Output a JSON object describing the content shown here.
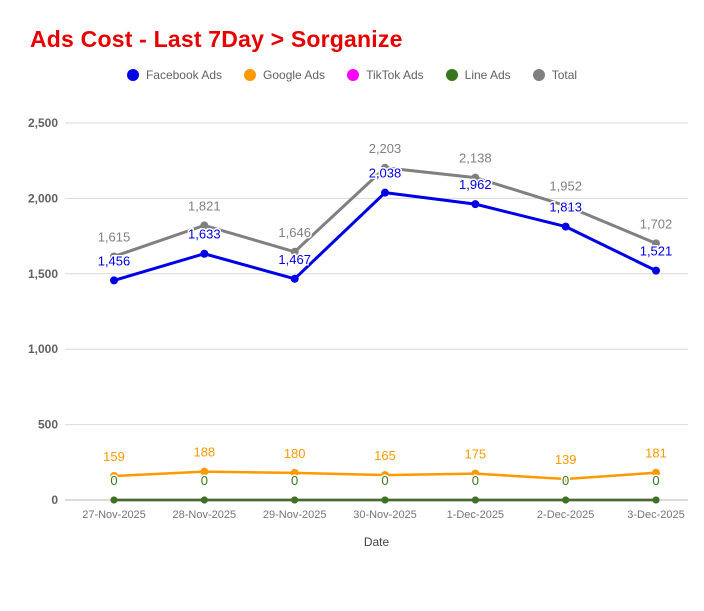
{
  "title": "Ads Cost - Last 7Day > Sorganize",
  "colors": {
    "title": "#e60000",
    "gridline": "#d9d9d9",
    "baseline": "#b7b7b7",
    "axis_text": "#616161",
    "x_text": "#757575",
    "axis_title_text": "#424242",
    "label_halo": "#ffffff"
  },
  "chart_data": {
    "type": "line",
    "title": "Ads Cost - Last 7Day > Sorganize",
    "categories": [
      "27-Nov-2025",
      "28-Nov-2025",
      "29-Nov-2025",
      "30-Nov-2025",
      "1-Dec-2025",
      "2-Dec-2025",
      "3-Dec-2025"
    ],
    "series": [
      {
        "name": "Facebook Ads",
        "color": "#0000e6",
        "values": [
          1456,
          1633,
          1467,
          2038,
          1962,
          1813,
          1521
        ],
        "labels_visible": true
      },
      {
        "name": "Google Ads",
        "color": "#ff9900",
        "values": [
          159,
          188,
          180,
          165,
          175,
          139,
          181
        ],
        "labels_visible": true
      },
      {
        "name": "TikTok Ads",
        "color": "#ff00ff",
        "values": [
          0,
          0,
          0,
          0,
          0,
          0,
          0
        ],
        "labels_visible": false
      },
      {
        "name": "Line Ads",
        "color": "#38761d",
        "values": [
          0,
          0,
          0,
          0,
          0,
          0,
          0
        ],
        "labels_visible": true
      },
      {
        "name": "Total",
        "color": "#808080",
        "values": [
          1615,
          1821,
          1646,
          2203,
          2138,
          1952,
          1702
        ],
        "labels_visible": true
      }
    ],
    "xlabel": "Date",
    "ylabel": "",
    "ylim": [
      0,
      2500
    ],
    "yticks": [
      0,
      500,
      1000,
      1500,
      2000,
      2500
    ],
    "ytick_labels": [
      "0",
      "500",
      "1,000",
      "1,500",
      "2,000",
      "2,500"
    ],
    "grid": true,
    "legend_position": "top"
  }
}
